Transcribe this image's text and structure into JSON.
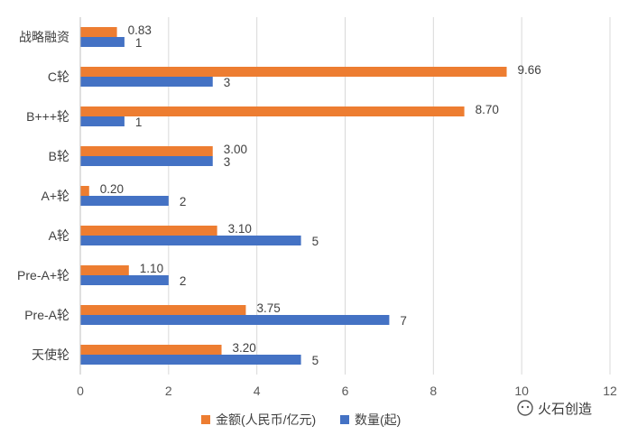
{
  "chart_data": {
    "type": "bar",
    "orientation": "horizontal",
    "categories": [
      "战略融资",
      "C轮",
      "B+++轮",
      "B轮",
      "A+轮",
      "A轮",
      "Pre-A+轮",
      "Pre-A轮",
      "天使轮"
    ],
    "series": [
      {
        "name": "金额(人民币/亿元)",
        "color": "#ED7D31",
        "values": [
          0.83,
          9.66,
          8.7,
          3.0,
          0.2,
          3.1,
          1.1,
          3.75,
          3.2
        ],
        "labels": [
          "0.83",
          "9.66",
          "8.70",
          "3.00",
          "0.20",
          "3.10",
          "1.10",
          "3.75",
          "3.20"
        ]
      },
      {
        "name": "数量(起)",
        "color": "#4472C4",
        "values": [
          1,
          3,
          1,
          3,
          2,
          5,
          2,
          7,
          5
        ],
        "labels": [
          "1",
          "3",
          "1",
          "3",
          "2",
          "5",
          "2",
          "7",
          "5"
        ]
      }
    ],
    "xlim": [
      0,
      12
    ],
    "xticks": [
      "0",
      "2",
      "4",
      "6",
      "8",
      "10",
      "12"
    ],
    "grid": true,
    "legend": "bottom"
  },
  "watermark": {
    "text": "火石创造"
  }
}
